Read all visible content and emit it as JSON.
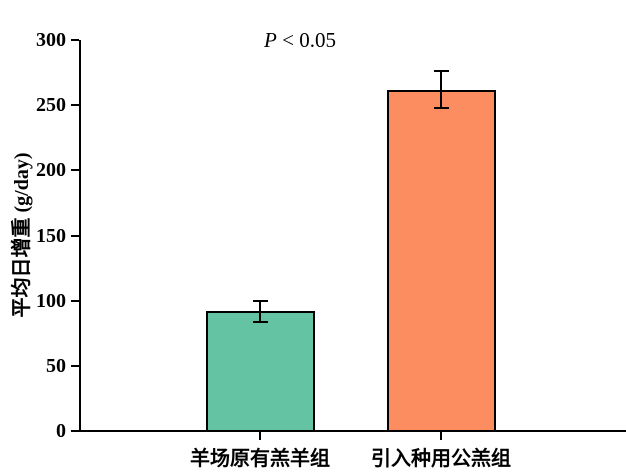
{
  "figure": {
    "ylabel": "平均日增重 (g/day)",
    "annotation": {
      "p": "P",
      "rest": " < 0.05"
    }
  },
  "chart_data": {
    "type": "bar",
    "categories": [
      "羊场原有羔羊组",
      "引入种用公羔组"
    ],
    "category_names": [
      "farm-original-lamb-group",
      "introduced-breeding-ram-group"
    ],
    "values": [
      92,
      262
    ],
    "errors": [
      8,
      14
    ],
    "bar_colors": [
      "#63C3A3",
      "#FB8D60"
    ],
    "axis_color": "#000000",
    "title": "",
    "xlabel": "",
    "ylabel": "平均日增重 (g/day)",
    "ylim": [
      0,
      300
    ],
    "yticks": [
      0,
      50,
      100,
      150,
      200,
      250,
      300
    ],
    "annotation": "P < 0.05",
    "grid": false,
    "legend": false
  }
}
